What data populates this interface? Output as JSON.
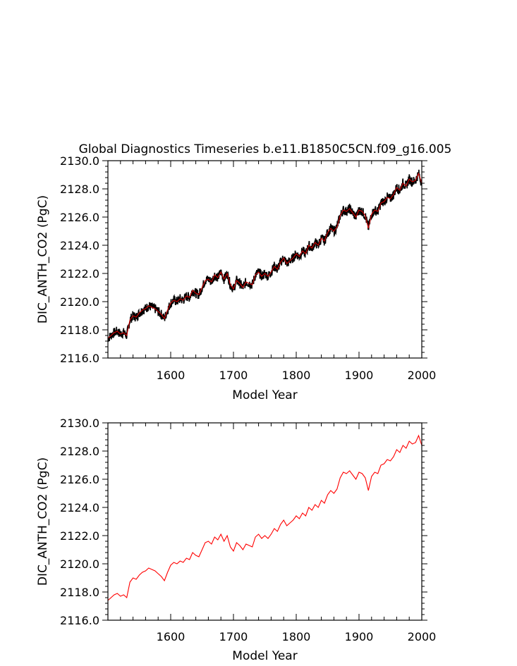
{
  "title": "Global Diagnostics Timeseries b.e11.B1850C5CN.f09_g16.005",
  "chart_data": [
    {
      "type": "line",
      "name": "top",
      "xlabel": "Model Year",
      "ylabel": "DIC_ANTH_CO2 (PgC)",
      "xlim": [
        1500,
        2000
      ],
      "ylim": [
        2116.0,
        2130.0
      ],
      "xticks": [
        1600,
        1700,
        1800,
        1900,
        2000
      ],
      "yticks": [
        "2116.0",
        "2118.0",
        "2120.0",
        "2122.0",
        "2124.0",
        "2126.0",
        "2128.0",
        "2130.0"
      ],
      "series": [
        {
          "name": "monthly",
          "color": "#000000",
          "band": 0.35
        },
        {
          "name": "annual mean",
          "color": "#d40000"
        }
      ],
      "x": [
        1500,
        1505,
        1510,
        1515,
        1520,
        1525,
        1530,
        1535,
        1540,
        1545,
        1550,
        1555,
        1560,
        1565,
        1570,
        1575,
        1580,
        1585,
        1590,
        1595,
        1600,
        1605,
        1610,
        1615,
        1620,
        1625,
        1630,
        1635,
        1640,
        1645,
        1650,
        1655,
        1660,
        1665,
        1670,
        1675,
        1680,
        1685,
        1690,
        1695,
        1700,
        1705,
        1710,
        1715,
        1720,
        1725,
        1730,
        1735,
        1740,
        1745,
        1750,
        1755,
        1760,
        1765,
        1770,
        1775,
        1780,
        1785,
        1790,
        1795,
        1800,
        1805,
        1810,
        1815,
        1820,
        1825,
        1830,
        1835,
        1840,
        1845,
        1850,
        1855,
        1860,
        1865,
        1870,
        1875,
        1880,
        1885,
        1890,
        1895,
        1900,
        1905,
        1910,
        1915,
        1920,
        1925,
        1930,
        1935,
        1940,
        1945,
        1950,
        1955,
        1960,
        1965,
        1970,
        1975,
        1980,
        1985,
        1990,
        1995,
        2000
      ],
      "values": [
        2117.4,
        2117.6,
        2117.8,
        2117.9,
        2117.7,
        2117.8,
        2117.6,
        2118.7,
        2119.0,
        2118.9,
        2119.2,
        2119.4,
        2119.5,
        2119.7,
        2119.6,
        2119.5,
        2119.3,
        2119.1,
        2118.8,
        2119.4,
        2119.9,
        2120.1,
        2120.0,
        2120.2,
        2120.1,
        2120.4,
        2120.3,
        2120.8,
        2120.6,
        2120.5,
        2121.0,
        2121.5,
        2121.6,
        2121.4,
        2121.9,
        2121.7,
        2122.1,
        2121.6,
        2122.0,
        2121.2,
        2120.9,
        2121.5,
        2121.3,
        2121.0,
        2121.4,
        2121.3,
        2121.2,
        2121.9,
        2122.1,
        2121.8,
        2122.0,
        2121.8,
        2122.1,
        2122.5,
        2122.3,
        2122.8,
        2123.1,
        2122.7,
        2122.9,
        2123.1,
        2123.4,
        2123.2,
        2123.6,
        2123.4,
        2124.0,
        2123.8,
        2124.2,
        2124.0,
        2124.5,
        2124.3,
        2124.9,
        2125.2,
        2125.0,
        2125.3,
        2126.1,
        2126.5,
        2126.4,
        2126.6,
        2126.3,
        2126.0,
        2126.5,
        2126.4,
        2126.1,
        2125.2,
        2126.2,
        2126.5,
        2126.4,
        2127.0,
        2127.1,
        2127.4,
        2127.3,
        2127.6,
        2128.1,
        2127.9,
        2128.4,
        2128.2,
        2128.7,
        2128.5,
        2128.6,
        2129.1,
        2128.4
      ]
    },
    {
      "type": "line",
      "name": "bottom",
      "xlabel": "Model Year",
      "ylabel": "DIC_ANTH_CO2 (PgC)",
      "xlim": [
        1500,
        2000
      ],
      "ylim": [
        2116.0,
        2130.0
      ],
      "xticks": [
        1600,
        1700,
        1800,
        1900,
        2000
      ],
      "yticks": [
        "2116.0",
        "2118.0",
        "2120.0",
        "2122.0",
        "2124.0",
        "2126.0",
        "2128.0",
        "2130.0"
      ],
      "series": [
        {
          "name": "annual mean",
          "color": "#ff0000"
        }
      ],
      "x": [
        1500,
        1505,
        1510,
        1515,
        1520,
        1525,
        1530,
        1535,
        1540,
        1545,
        1550,
        1555,
        1560,
        1565,
        1570,
        1575,
        1580,
        1585,
        1590,
        1595,
        1600,
        1605,
        1610,
        1615,
        1620,
        1625,
        1630,
        1635,
        1640,
        1645,
        1650,
        1655,
        1660,
        1665,
        1670,
        1675,
        1680,
        1685,
        1690,
        1695,
        1700,
        1705,
        1710,
        1715,
        1720,
        1725,
        1730,
        1735,
        1740,
        1745,
        1750,
        1755,
        1760,
        1765,
        1770,
        1775,
        1780,
        1785,
        1790,
        1795,
        1800,
        1805,
        1810,
        1815,
        1820,
        1825,
        1830,
        1835,
        1840,
        1845,
        1850,
        1855,
        1860,
        1865,
        1870,
        1875,
        1880,
        1885,
        1890,
        1895,
        1900,
        1905,
        1910,
        1915,
        1920,
        1925,
        1930,
        1935,
        1940,
        1945,
        1950,
        1955,
        1960,
        1965,
        1970,
        1975,
        1980,
        1985,
        1990,
        1995,
        2000
      ],
      "values": [
        2117.4,
        2117.6,
        2117.8,
        2117.9,
        2117.7,
        2117.8,
        2117.6,
        2118.7,
        2119.0,
        2118.9,
        2119.2,
        2119.4,
        2119.5,
        2119.7,
        2119.6,
        2119.5,
        2119.3,
        2119.1,
        2118.8,
        2119.4,
        2119.9,
        2120.1,
        2120.0,
        2120.2,
        2120.1,
        2120.4,
        2120.3,
        2120.8,
        2120.6,
        2120.5,
        2121.0,
        2121.5,
        2121.6,
        2121.4,
        2121.9,
        2121.7,
        2122.1,
        2121.6,
        2122.0,
        2121.2,
        2120.9,
        2121.5,
        2121.3,
        2121.0,
        2121.4,
        2121.3,
        2121.2,
        2121.9,
        2122.1,
        2121.8,
        2122.0,
        2121.8,
        2122.1,
        2122.5,
        2122.3,
        2122.8,
        2123.1,
        2122.7,
        2122.9,
        2123.1,
        2123.4,
        2123.2,
        2123.6,
        2123.4,
        2124.0,
        2123.8,
        2124.2,
        2124.0,
        2124.5,
        2124.3,
        2124.9,
        2125.2,
        2125.0,
        2125.3,
        2126.1,
        2126.5,
        2126.4,
        2126.6,
        2126.3,
        2126.0,
        2126.5,
        2126.4,
        2126.1,
        2125.2,
        2126.2,
        2126.5,
        2126.4,
        2127.0,
        2127.1,
        2127.4,
        2127.3,
        2127.6,
        2128.1,
        2127.9,
        2128.4,
        2128.2,
        2128.7,
        2128.5,
        2128.6,
        2129.1,
        2128.4
      ]
    }
  ]
}
